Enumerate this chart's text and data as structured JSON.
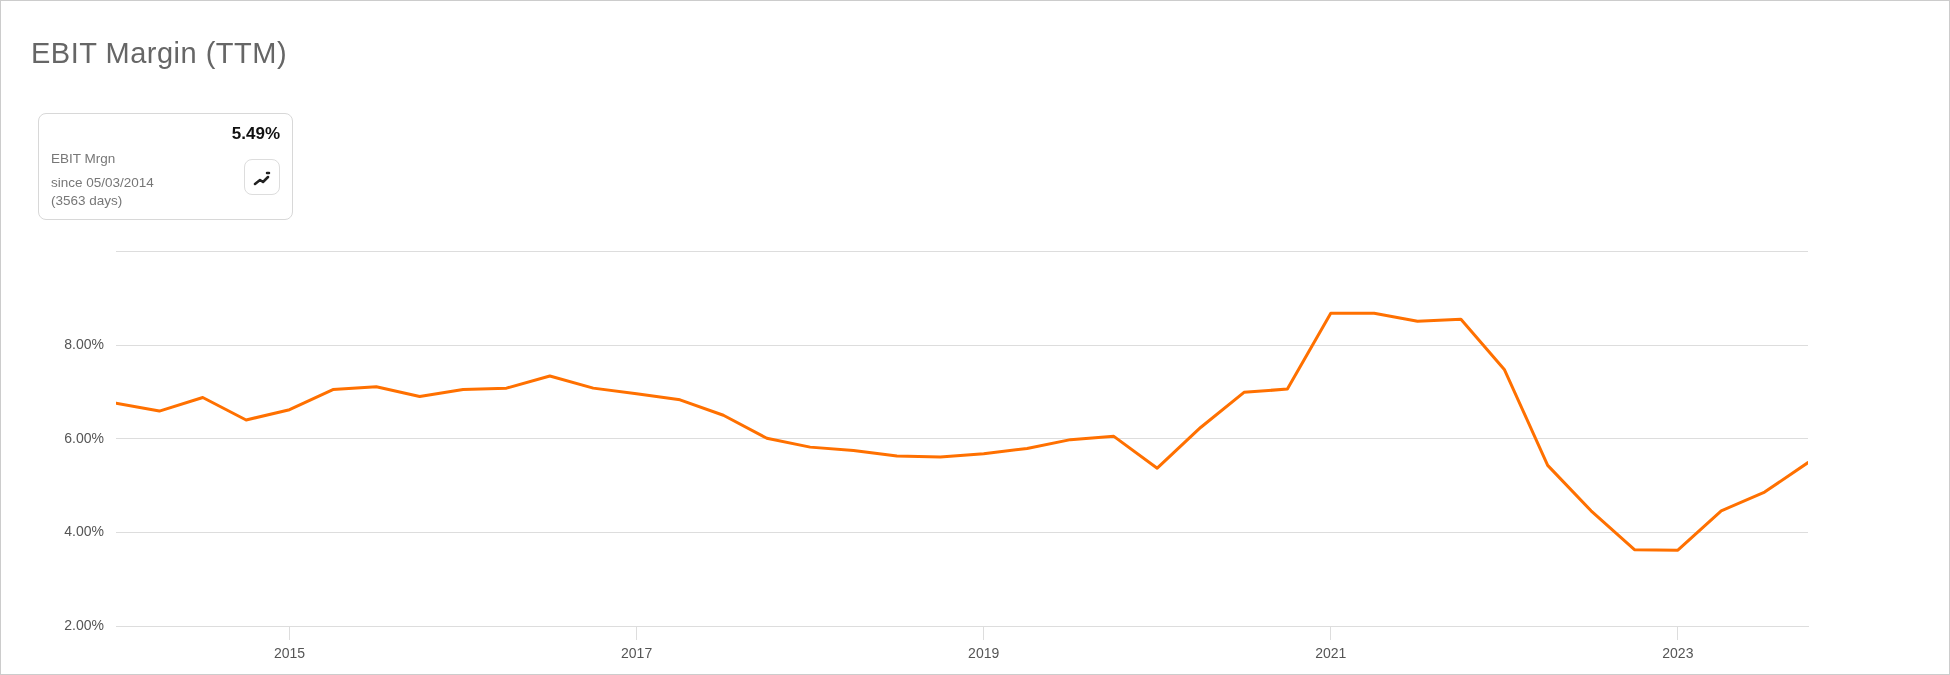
{
  "chart_data": {
    "type": "line",
    "title": "EBIT Margin (TTM)",
    "annotations": [
      "5.49%",
      "EBIT Mrgn",
      "since 05/03/2014",
      "(3563 days)"
    ],
    "x": [
      2014,
      2014.25,
      2014.5,
      2014.75,
      2015,
      2015.25,
      2015.5,
      2015.75,
      2016,
      2016.25,
      2016.5,
      2016.75,
      2017,
      2017.25,
      2017.5,
      2017.75,
      2018,
      2018.25,
      2018.5,
      2018.75,
      2019,
      2019.25,
      2019.5,
      2019.75,
      2020,
      2020.25,
      2020.5,
      2020.75,
      2021,
      2021.25,
      2021.5,
      2021.75,
      2022,
      2022.25,
      2022.5,
      2022.75,
      2023,
      2023.25,
      2023.5,
      2023.75
    ],
    "series": [
      {
        "color": "#ff7000",
        "values": [
          6.76,
          6.59,
          6.88,
          6.4,
          6.62,
          7.05,
          7.11,
          6.9,
          7.05,
          7.08,
          7.34,
          7.08,
          6.96,
          6.83,
          6.5,
          6.01,
          5.82,
          5.75,
          5.63,
          5.61,
          5.68,
          5.79,
          5.98,
          6.05,
          5.37,
          6.24,
          6.99,
          7.06,
          8.68,
          8.68,
          8.51,
          8.55,
          7.48,
          5.43,
          4.46,
          3.63,
          3.62,
          4.46,
          4.86,
          5.49
        ]
      }
    ],
    "xlim": [
      2014,
      2023.75
    ],
    "xticks": [
      2015,
      2017,
      2019,
      2021,
      2023
    ],
    "ylim": [
      2,
      10
    ],
    "yticks": [
      {
        "value": 2,
        "label": "2.00%"
      },
      {
        "value": 4,
        "label": "4.00%"
      },
      {
        "value": 6,
        "label": "6.00%"
      },
      {
        "value": 8,
        "label": "8.00%"
      },
      {
        "value": 10,
        "label": null
      }
    ],
    "grid": "y",
    "legend": false,
    "marker": "none",
    "line_style": "solid"
  }
}
